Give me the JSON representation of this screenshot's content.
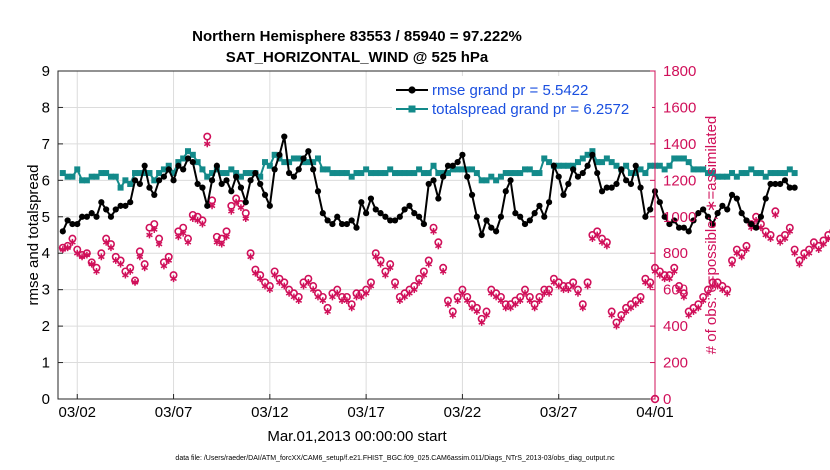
{
  "chart_data": {
    "type": "line",
    "title": "Northern Hemisphere 83553 / 85940 = 97.222%",
    "subtitle": "SAT_HORIZONTAL_WIND @ 525 hPa",
    "xlabel": "Mar.01,2013 00:00:00 start",
    "ylabel_left": "rmse and totalspread",
    "ylabel_right": "# of obs: o=possible; ∗=assimilated",
    "xlim": [
      0,
      31
    ],
    "ylim_left": [
      0,
      9
    ],
    "ylim_right": [
      0,
      1800
    ],
    "x_ticks": [
      1,
      6,
      11,
      16,
      21,
      26,
      31
    ],
    "x_tick_labels": [
      "03/02",
      "03/07",
      "03/12",
      "03/17",
      "03/22",
      "03/27",
      "04/01"
    ],
    "y_left_ticks": [
      "0",
      "1",
      "2",
      "3",
      "4",
      "5",
      "6",
      "7",
      "8",
      "9"
    ],
    "y_right_ticks": [
      "0",
      "200",
      "400",
      "600",
      "800",
      "1000",
      "1200",
      "1400",
      "1600",
      "1800"
    ],
    "legend": [
      "rmse grand pr = 5.5422",
      "totalspread grand pr = 6.2572"
    ],
    "colors": {
      "rmse": "#000000",
      "totalspread": "#138a8a",
      "obs": "#d0105a",
      "legend_text": "#1a4fe0"
    },
    "series": [
      {
        "name": "rmse",
        "axis": "left",
        "step_days": 0.25,
        "values": [
          4.6,
          4.9,
          4.8,
          4.8,
          5.0,
          5.0,
          5.1,
          5.0,
          5.4,
          5.2,
          5.0,
          5.2,
          5.3,
          5.3,
          5.4,
          6.0,
          5.9,
          6.4,
          5.8,
          5.6,
          6.0,
          6.1,
          6.3,
          6.0,
          6.4,
          6.3,
          6.6,
          6.5,
          5.9,
          5.8,
          5.3,
          6.0,
          6.4,
          5.9,
          6.0,
          5.7,
          6.1,
          5.8,
          5.4,
          6.0,
          6.2,
          5.9,
          5.6,
          5.3,
          6.3,
          6.7,
          7.2,
          6.2,
          6.1,
          6.3,
          6.6,
          6.8,
          6.3,
          5.7,
          5.1,
          4.9,
          4.8,
          5.0,
          4.8,
          4.8,
          4.9,
          4.7,
          5.4,
          5.1,
          5.5,
          5.2,
          5.1,
          5.0,
          4.9,
          4.9,
          5.0,
          5.2,
          5.3,
          5.1,
          5.0,
          4.8,
          5.9,
          6.0,
          5.5,
          6.1,
          6.4,
          6.4,
          6.5,
          6.7,
          6.1,
          5.6,
          5.0,
          4.5,
          4.9,
          4.7,
          4.6,
          5.0,
          5.7,
          6.0,
          5.1,
          5.0,
          4.8,
          4.9,
          5.1,
          5.3,
          5.0,
          5.4,
          6.4,
          6.1,
          5.6,
          5.9,
          6.3,
          6.1,
          6.2,
          6.4,
          6.7,
          6.2,
          5.7,
          5.8,
          5.8,
          5.9,
          6.3,
          6.0,
          5.9,
          6.4,
          5.8,
          5.0,
          5.2,
          5.7,
          5.4,
          5.0,
          4.8,
          4.9,
          4.7,
          4.7,
          4.6,
          4.9,
          5.1,
          5.2,
          5.0,
          4.8,
          5.1,
          5.3,
          5.2,
          5.6,
          5.5,
          5.1,
          4.9,
          4.8,
          4.7,
          5.0,
          5.5,
          5.9,
          5.9,
          5.9,
          6.0,
          5.8,
          5.8
        ],
        "start_day": 0.25
      },
      {
        "name": "totalspread",
        "axis": "left",
        "step_days": 0.25,
        "values": [
          6.2,
          6.1,
          6.1,
          6.3,
          6.0,
          6.0,
          6.1,
          6.1,
          6.2,
          6.2,
          6.1,
          6.1,
          5.8,
          6.0,
          5.9,
          6.2,
          6.2,
          6.2,
          6.2,
          6.0,
          6.2,
          6.3,
          6.4,
          6.2,
          6.5,
          6.6,
          6.8,
          6.7,
          6.5,
          6.3,
          6.1,
          6.2,
          6.3,
          6.2,
          6.2,
          6.3,
          6.2,
          6.1,
          6.2,
          6.2,
          6.2,
          6.1,
          6.5,
          6.4,
          6.7,
          6.6,
          6.5,
          6.5,
          6.6,
          6.6,
          6.5,
          6.5,
          6.5,
          6.6,
          6.3,
          6.3,
          6.2,
          6.2,
          6.2,
          6.2,
          6.1,
          6.2,
          6.2,
          6.3,
          6.2,
          6.2,
          6.2,
          6.2,
          6.3,
          6.2,
          6.2,
          6.2,
          6.2,
          6.2,
          6.3,
          6.2,
          6.2,
          6.4,
          6.2,
          6.2,
          6.2,
          6.3,
          6.3,
          6.3,
          6.3,
          6.3,
          6.2,
          6.0,
          6.0,
          6.1,
          6.0,
          6.1,
          6.2,
          6.2,
          6.2,
          6.2,
          6.3,
          6.3,
          6.2,
          6.2,
          6.6,
          6.5,
          6.4,
          6.4,
          6.4,
          6.4,
          6.4,
          6.5,
          6.6,
          6.7,
          6.8,
          6.5,
          6.5,
          6.6,
          6.5,
          6.4,
          6.3,
          6.4,
          6.2,
          6.2,
          6.3,
          6.2,
          6.4,
          6.4,
          6.4,
          6.3,
          6.4,
          6.6,
          6.6,
          6.6,
          6.5,
          6.3,
          6.3,
          6.3,
          6.2,
          6.2,
          6.1,
          6.1,
          6.1,
          6.2,
          6.1,
          6.2,
          6.2,
          6.3,
          6.2,
          6.2,
          6.1,
          6.2,
          6.2,
          6.2,
          6.2,
          6.3,
          6.2
        ],
        "start_day": 0.25
      },
      {
        "name": "obs_possible",
        "axis": "right",
        "marker": "o",
        "step_days": 0.25,
        "values": [
          830,
          840,
          880,
          820,
          790,
          800,
          750,
          720,
          800,
          880,
          850,
          780,
          760,
          700,
          720,
          650,
          810,
          740,
          940,
          960,
          880,
          750,
          780,
          680,
          920,
          940,
          880,
          1010,
          1000,
          980,
          1440,
          1090,
          890,
          880,
          920,
          1060,
          1100,
          1070,
          1020,
          800,
          710,
          680,
          640,
          620,
          700,
          660,
          640,
          600,
          580,
          560,
          640,
          660,
          620,
          580,
          560,
          500,
          580,
          600,
          560,
          560,
          520,
          580,
          580,
          600,
          640,
          800,
          760,
          700,
          740,
          640,
          560,
          580,
          600,
          620,
          660,
          700,
          760,
          940,
          860,
          720,
          540,
          480,
          560,
          600,
          560,
          520,
          500,
          440,
          480,
          600,
          580,
          560,
          520,
          520,
          540,
          560,
          600,
          560,
          520,
          560,
          600,
          600,
          660,
          640,
          620,
          620,
          640,
          600,
          520,
          640,
          900,
          920,
          880,
          860,
          480,
          420,
          460,
          500,
          520,
          540,
          560,
          660,
          640,
          720,
          700,
          680,
          680,
          720,
          620,
          580,
          480,
          500,
          520,
          560,
          600,
          640,
          640,
          620,
          600,
          760,
          820,
          800,
          840,
          960,
          1000,
          960,
          920,
          900,
          1030,
          880,
          900,
          940,
          820,
          760,
          800,
          820,
          860,
          840,
          870,
          900,
          920
        ],
        "start_day": 0.25
      },
      {
        "name": "obs_assimilated",
        "axis": "right",
        "marker": "*",
        "step_days": 0.25,
        "values": [
          820,
          830,
          860,
          800,
          780,
          790,
          740,
          700,
          780,
          860,
          830,
          760,
          740,
          680,
          700,
          640,
          780,
          720,
          900,
          930,
          850,
          730,
          760,
          660,
          890,
          910,
          860,
          990,
          980,
          960,
          1400,
          1060,
          860,
          850,
          890,
          1030,
          1080,
          1050,
          990,
          780,
          690,
          660,
          620,
          600,
          680,
          640,
          620,
          580,
          560,
          540,
          620,
          640,
          600,
          560,
          540,
          480,
          560,
          580,
          540,
          540,
          500,
          560,
          560,
          580,
          620,
          780,
          740,
          680,
          720,
          620,
          540,
          560,
          580,
          600,
          640,
          680,
          740,
          920,
          840,
          700,
          520,
          460,
          540,
          580,
          540,
          500,
          480,
          420,
          460,
          580,
          560,
          540,
          500,
          500,
          520,
          540,
          580,
          540,
          500,
          540,
          580,
          580,
          640,
          620,
          600,
          600,
          620,
          580,
          500,
          620,
          880,
          900,
          860,
          840,
          460,
          400,
          440,
          480,
          500,
          520,
          540,
          640,
          620,
          700,
          680,
          660,
          660,
          700,
          600,
          560,
          460,
          480,
          500,
          540,
          580,
          620,
          620,
          600,
          580,
          740,
          800,
          780,
          820,
          940,
          980,
          940,
          900,
          880,
          1010,
          860,
          880,
          920,
          800,
          740,
          780,
          800,
          840,
          820,
          850,
          880,
          900
        ],
        "start_day": 0.25
      }
    ]
  },
  "footer": {
    "note": "data file: /Users/raeder/DAI/ATM_forcXX/CAM6_setup/f.e21.FHIST_BGC.f09_025.CAM6assim.011/Diags_NTrS_2013-03/obs_diag_output.nc"
  }
}
